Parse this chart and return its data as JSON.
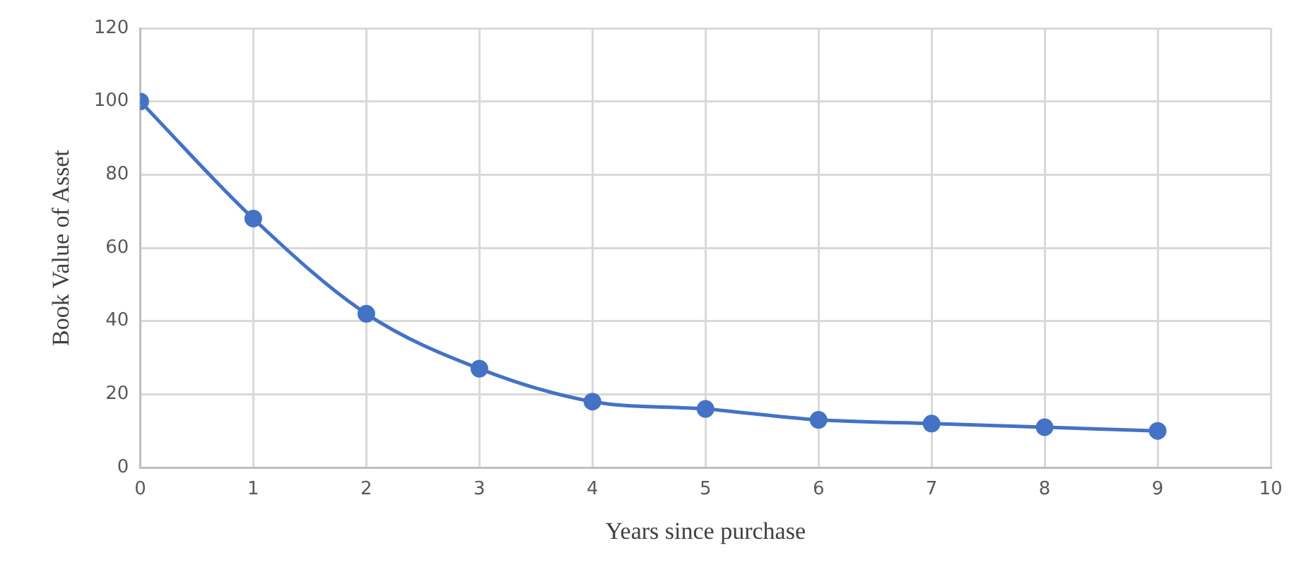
{
  "chart_data": {
    "type": "line",
    "xlabel": "Years since purchase",
    "ylabel": "Book Value of Asset",
    "x": [
      0,
      1,
      2,
      3,
      4,
      5,
      6,
      7,
      8,
      9
    ],
    "series": [
      {
        "color": "#4472c4",
        "values": [
          100,
          68,
          42,
          27,
          18,
          16,
          13,
          12,
          11,
          10
        ]
      }
    ],
    "xlim": [
      0,
      10
    ],
    "xticks": [
      0,
      1,
      2,
      3,
      4,
      5,
      6,
      7,
      8,
      9,
      10
    ],
    "ylim": [
      0,
      120
    ],
    "yticks": [
      0,
      20,
      40,
      60,
      80,
      100,
      120
    ],
    "grid": true,
    "marker": "circle",
    "line_style": "solid"
  }
}
